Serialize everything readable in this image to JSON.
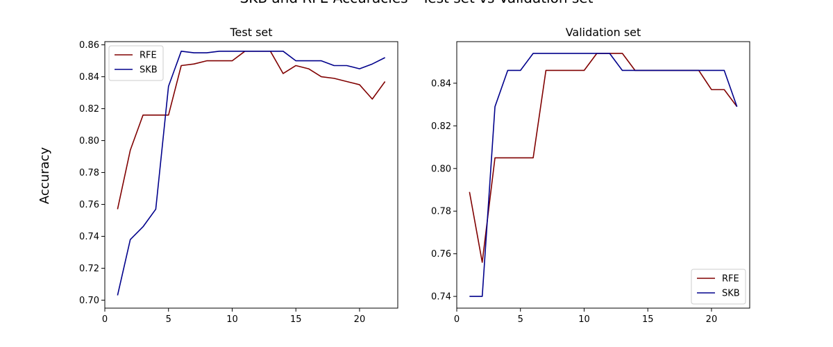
{
  "figure": {
    "suptitle": "SKB and RFE Accuracies - Test set vs Validation set",
    "ylabel": "Accuracy"
  },
  "colors": {
    "RFE": "#800000",
    "SKB": "#00008b"
  },
  "chart_data": [
    {
      "type": "line",
      "title": "Test set",
      "xlabel": "",
      "ylabel": "",
      "xlim": [
        0,
        23
      ],
      "ylim": [
        0.695,
        0.862
      ],
      "xticks": [
        0,
        5,
        10,
        15,
        20
      ],
      "yticks": [
        0.7,
        0.72,
        0.74,
        0.76,
        0.78,
        0.8,
        0.82,
        0.84,
        0.86
      ],
      "grid": false,
      "legend": "top-left",
      "x": [
        1,
        2,
        3,
        4,
        5,
        6,
        7,
        8,
        9,
        10,
        11,
        12,
        13,
        14,
        15,
        16,
        17,
        18,
        19,
        20,
        21,
        22
      ],
      "series": [
        {
          "name": "RFE",
          "values": [
            0.757,
            0.794,
            0.816,
            0.816,
            0.816,
            0.847,
            0.848,
            0.85,
            0.85,
            0.85,
            0.856,
            0.856,
            0.856,
            0.842,
            0.847,
            0.845,
            0.84,
            0.839,
            0.837,
            0.835,
            0.826,
            0.837
          ]
        },
        {
          "name": "SKB",
          "values": [
            0.703,
            0.738,
            0.746,
            0.757,
            0.834,
            0.856,
            0.855,
            0.855,
            0.856,
            0.856,
            0.856,
            0.856,
            0.856,
            0.856,
            0.85,
            0.85,
            0.85,
            0.847,
            0.847,
            0.845,
            0.848,
            0.852
          ]
        }
      ]
    },
    {
      "type": "line",
      "title": "Validation set",
      "xlabel": "",
      "ylabel": "",
      "xlim": [
        0,
        23
      ],
      "ylim": [
        0.7345,
        0.8595
      ],
      "xticks": [
        0,
        5,
        10,
        15,
        20
      ],
      "yticks": [
        0.74,
        0.76,
        0.78,
        0.8,
        0.82,
        0.84
      ],
      "grid": false,
      "legend": "bottom-right",
      "x": [
        1,
        2,
        3,
        4,
        5,
        6,
        7,
        8,
        9,
        10,
        11,
        12,
        13,
        14,
        15,
        16,
        17,
        18,
        19,
        20,
        21,
        22
      ],
      "series": [
        {
          "name": "RFE",
          "values": [
            0.789,
            0.756,
            0.805,
            0.805,
            0.805,
            0.805,
            0.846,
            0.846,
            0.846,
            0.846,
            0.854,
            0.854,
            0.854,
            0.846,
            0.846,
            0.846,
            0.846,
            0.846,
            0.846,
            0.837,
            0.837,
            0.829
          ]
        },
        {
          "name": "SKB",
          "values": [
            0.74,
            0.74,
            0.829,
            0.846,
            0.846,
            0.854,
            0.854,
            0.854,
            0.854,
            0.854,
            0.854,
            0.854,
            0.846,
            0.846,
            0.846,
            0.846,
            0.846,
            0.846,
            0.846,
            0.846,
            0.846,
            0.829
          ]
        }
      ]
    }
  ]
}
